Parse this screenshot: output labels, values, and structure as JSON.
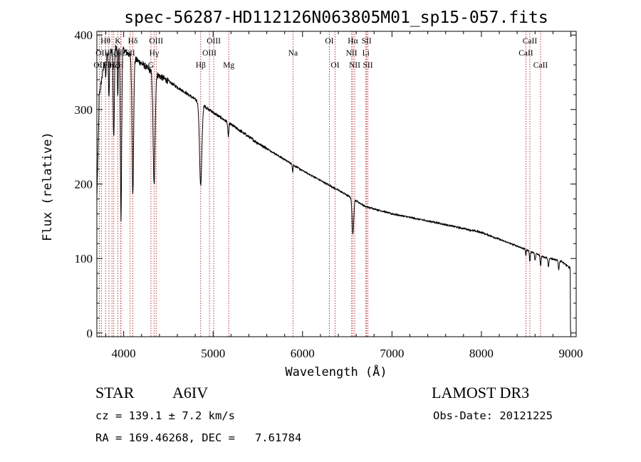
{
  "chart_data": {
    "type": "line",
    "title": "spec-56287-HD112126N063805M01_sp15-057.fits",
    "xlabel": "Wavelength (Å)",
    "ylabel": "Flux (relative)",
    "xlim": [
      3700,
      9060
    ],
    "ylim": [
      -5,
      405
    ],
    "xticks": [
      4000,
      5000,
      6000,
      7000,
      8000,
      9000
    ],
    "yticks": [
      0,
      100,
      200,
      300,
      400
    ],
    "continuum_anchors": [
      [
        3700,
        300
      ],
      [
        3800,
        375
      ],
      [
        3900,
        385
      ],
      [
        4000,
        380
      ],
      [
        4100,
        370
      ],
      [
        4200,
        362
      ],
      [
        4300,
        352
      ],
      [
        4500,
        338
      ],
      [
        4700,
        322
      ],
      [
        4900,
        305
      ],
      [
        5000,
        296
      ],
      [
        5200,
        280
      ],
      [
        5500,
        255
      ],
      [
        6000,
        218
      ],
      [
        6500,
        185
      ],
      [
        6700,
        170
      ],
      [
        7000,
        160
      ],
      [
        7500,
        148
      ],
      [
        8000,
        135
      ],
      [
        8500,
        112
      ],
      [
        8700,
        102
      ],
      [
        8900,
        96
      ],
      [
        8980,
        88
      ]
    ],
    "absorption_features": [
      {
        "x": 3800,
        "depth": 30,
        "w": 6
      },
      {
        "x": 3835,
        "depth": 60,
        "w": 6
      },
      {
        "x": 3889,
        "depth": 120,
        "w": 7
      },
      {
        "x": 3934,
        "depth": 70,
        "w": 5
      },
      {
        "x": 3970,
        "depth": 230,
        "w": 7
      },
      {
        "x": 4102,
        "depth": 180,
        "w": 9
      },
      {
        "x": 4340,
        "depth": 150,
        "w": 11
      },
      {
        "x": 4861,
        "depth": 110,
        "w": 13
      },
      {
        "x": 5170,
        "depth": 18,
        "w": 6
      },
      {
        "x": 5890,
        "depth": 10,
        "w": 4
      },
      {
        "x": 6563,
        "depth": 48,
        "w": 9
      },
      {
        "x": 8498,
        "depth": 8,
        "w": 4
      },
      {
        "x": 8542,
        "depth": 14,
        "w": 5
      },
      {
        "x": 8600,
        "depth": 10,
        "w": 5
      },
      {
        "x": 8662,
        "depth": 14,
        "w": 5
      },
      {
        "x": 8750,
        "depth": 12,
        "w": 5
      },
      {
        "x": 8865,
        "depth": 12,
        "w": 5
      }
    ],
    "line_markers": [
      {
        "x": 3727,
        "label": "OII",
        "row": 2
      },
      {
        "x": 3750,
        "label": "OII",
        "row": 1
      },
      {
        "x": 3797,
        "label": "Hθ",
        "row": 0
      },
      {
        "x": 3835,
        "label": "Hη",
        "row": 2
      },
      {
        "x": 3869,
        "label": "Hζ",
        "row": 1
      },
      {
        "x": 3889,
        "label": "Hζ",
        "row": 2
      },
      {
        "x": 3934,
        "label": "K",
        "row": 0
      },
      {
        "x": 3968,
        "label": "H",
        "row": 2
      },
      {
        "x": 3970,
        "label": "Hε",
        "row": 1
      },
      {
        "x": 4072,
        "label": "SII",
        "row": 1
      },
      {
        "x": 4102,
        "label": "Hδ",
        "row": 0
      },
      {
        "x": 4305,
        "label": "G",
        "row": 2
      },
      {
        "x": 4340,
        "label": "Hγ",
        "row": 1
      },
      {
        "x": 4363,
        "label": "OIII",
        "row": 0
      },
      {
        "x": 4861,
        "label": "Hβ",
        "row": 2
      },
      {
        "x": 4959,
        "label": "OIII",
        "row": 1
      },
      {
        "x": 5007,
        "label": "OIII",
        "row": 0
      },
      {
        "x": 5175,
        "label": "Mg",
        "row": 2
      },
      {
        "x": 5893,
        "label": "Na",
        "row": 1
      },
      {
        "x": 6300,
        "label": "OI",
        "row": 0
      },
      {
        "x": 6364,
        "label": "OI",
        "row": 2
      },
      {
        "x": 6548,
        "label": "NII",
        "row": 1
      },
      {
        "x": 6563,
        "label": "Hα",
        "row": 0
      },
      {
        "x": 6583,
        "label": "NII",
        "row": 2
      },
      {
        "x": 6708,
        "label": "Li",
        "row": 1
      },
      {
        "x": 6716,
        "label": "SII",
        "row": 0
      },
      {
        "x": 6731,
        "label": "SII",
        "row": 2
      },
      {
        "x": 8498,
        "label": "CaII",
        "row": 1
      },
      {
        "x": 8542,
        "label": "CaII",
        "row": 0
      },
      {
        "x": 8662,
        "label": "CaII",
        "row": 2
      }
    ]
  },
  "object_class": "STAR",
  "subclass": "A6IV",
  "survey": "LAMOST DR3",
  "redshift_text": "cz = 139.1 ± 7.2 km/s",
  "obs_date_text": "Obs-Date: 20121225",
  "coords_text": "RA = 169.46268, DEC =   7.61784",
  "colors": {
    "spectrum": "#000000",
    "marker": "#b22222",
    "axes": "#000000"
  }
}
